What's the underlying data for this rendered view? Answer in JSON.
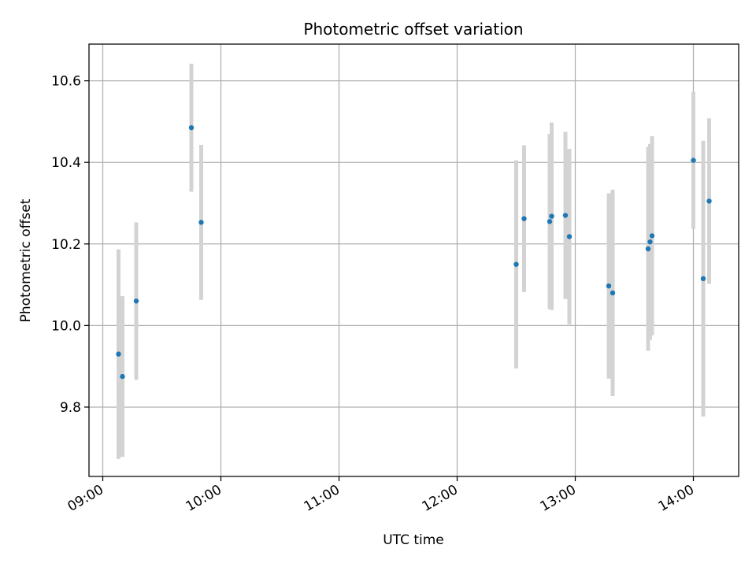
{
  "chart_data": {
    "type": "scatter",
    "title": "Photometric offset variation",
    "xlabel": "UTC time",
    "ylabel": "Photometric offset",
    "x_ticks": [
      "09:00",
      "10:00",
      "11:00",
      "12:00",
      "13:00",
      "14:00"
    ],
    "y_ticks": [
      "9.8",
      "10.0",
      "10.2",
      "10.4",
      "10.6"
    ],
    "xlim": [
      "08:53",
      "14:23"
    ],
    "ylim": [
      9.63,
      10.69
    ],
    "grid": true,
    "colors": {
      "point": "#1f77b4",
      "errorbar": "#d3d3d3",
      "grid": "#b0b0b0"
    },
    "series": [
      {
        "points": [
          {
            "x": "09:08",
            "y": 9.93,
            "err": 0.257
          },
          {
            "x": "09:10",
            "y": 9.875,
            "err": 0.197
          },
          {
            "x": "09:17",
            "y": 10.06,
            "err": 0.193
          },
          {
            "x": "09:45",
            "y": 10.485,
            "err": 0.157
          },
          {
            "x": "09:50",
            "y": 10.253,
            "err": 0.19
          },
          {
            "x": "12:30",
            "y": 10.15,
            "err": 0.255
          },
          {
            "x": "12:34",
            "y": 10.262,
            "err": 0.18
          },
          {
            "x": "12:47",
            "y": 10.255,
            "err": 0.215
          },
          {
            "x": "12:48",
            "y": 10.268,
            "err": 0.23
          },
          {
            "x": "12:55",
            "y": 10.27,
            "err": 0.205
          },
          {
            "x": "12:57",
            "y": 10.218,
            "err": 0.215
          },
          {
            "x": "13:17",
            "y": 10.097,
            "err": 0.227
          },
          {
            "x": "13:19",
            "y": 10.08,
            "err": 0.253
          },
          {
            "x": "13:37",
            "y": 10.188,
            "err": 0.25
          },
          {
            "x": "13:38",
            "y": 10.205,
            "err": 0.24
          },
          {
            "x": "13:39",
            "y": 10.22,
            "err": 0.244
          },
          {
            "x": "14:00",
            "y": 10.405,
            "err": 0.168
          },
          {
            "x": "14:05",
            "y": 10.115,
            "err": 0.338
          },
          {
            "x": "14:08",
            "y": 10.305,
            "err": 0.203
          }
        ]
      }
    ]
  }
}
